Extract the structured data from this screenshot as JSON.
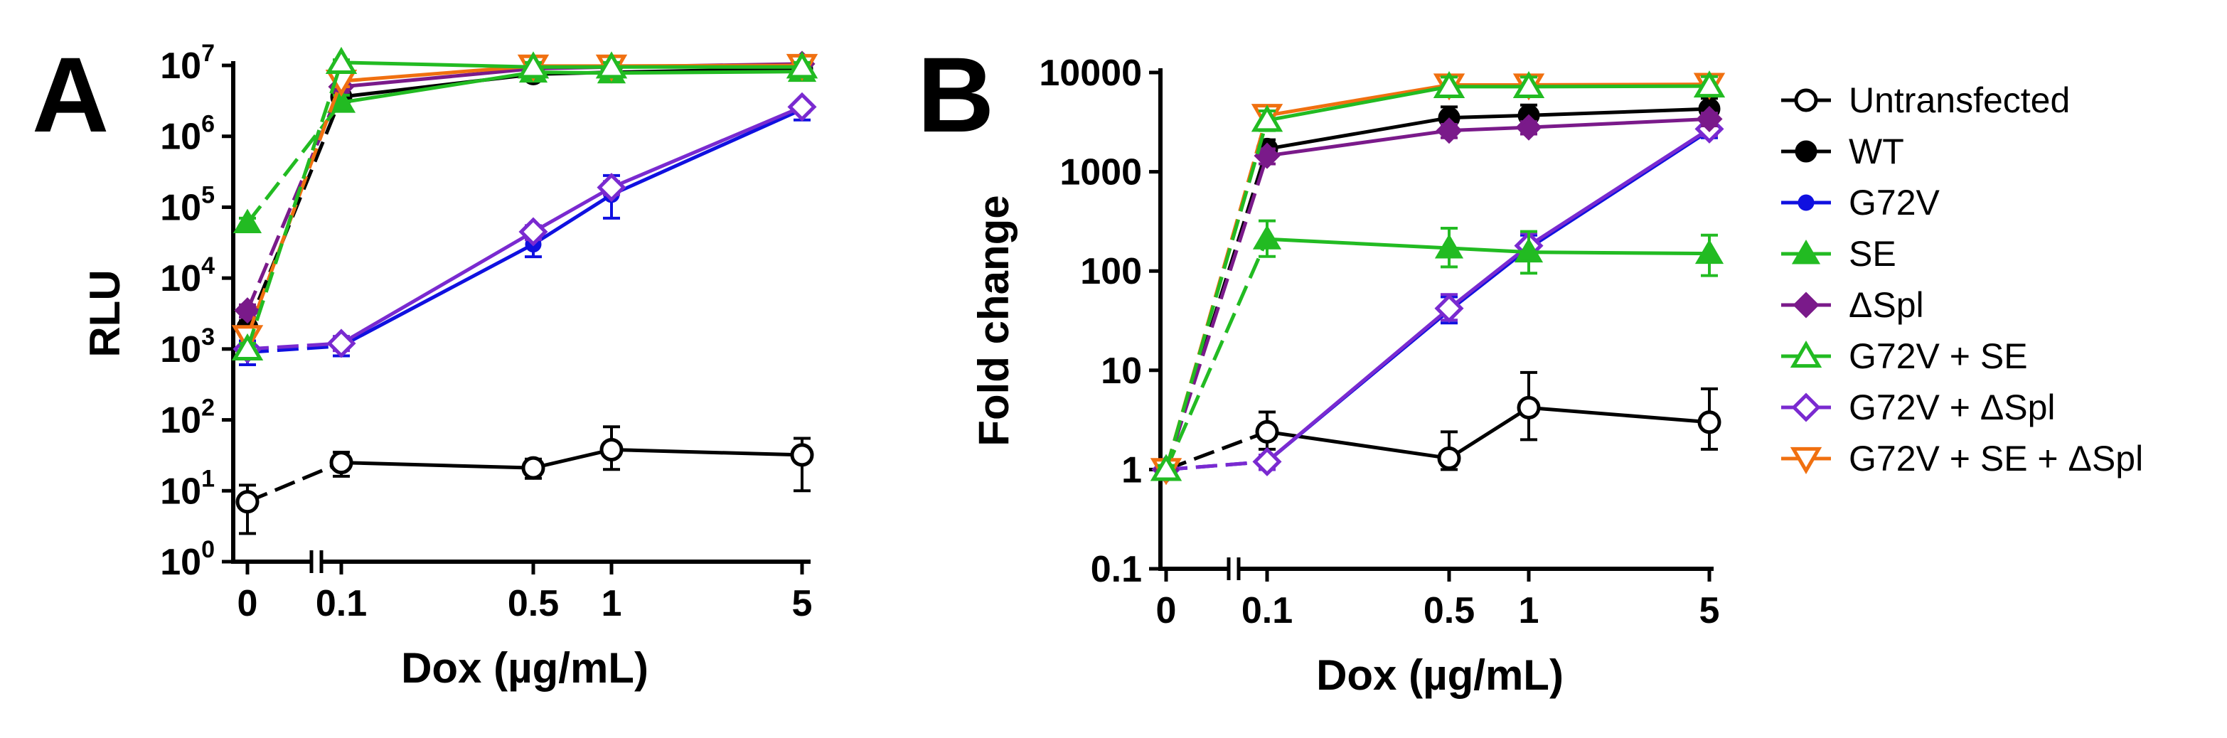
{
  "colors": {
    "untransfected": "#000000",
    "wt": "#000000",
    "g72v": "#1010e0",
    "se": "#22bb22",
    "dspl": "#7a1a8a",
    "g72v_se": "#22bb22",
    "g72v_dspl": "#7a2ad0",
    "g72v_se_dspl": "#f07010"
  },
  "legend": {
    "items": [
      {
        "key": "untransfected",
        "label": "Untransfected",
        "marker": "circle-open"
      },
      {
        "key": "wt",
        "label": "WT",
        "marker": "circle-filled"
      },
      {
        "key": "g72v",
        "label": "G72V",
        "marker": "circle-filled-small"
      },
      {
        "key": "se",
        "label": "SE",
        "marker": "triangle-up-filled"
      },
      {
        "key": "dspl",
        "label": "ΔSpl",
        "marker": "diamond-filled"
      },
      {
        "key": "g72v_se",
        "label": "G72V + SE",
        "marker": "triangle-up-open"
      },
      {
        "key": "g72v_dspl",
        "label": "G72V + ΔSpl",
        "marker": "diamond-open"
      },
      {
        "key": "g72v_se_dspl",
        "label": "G72V + SE + ΔSpl",
        "marker": "triangle-down-open"
      }
    ]
  },
  "chart_data": [
    {
      "type": "line",
      "panel_label": "A",
      "title": "",
      "xlabel": "Dox (µg/mL)",
      "ylabel": "RLU",
      "x": [
        0,
        0.1,
        0.5,
        1,
        5
      ],
      "x_tick_labels": [
        "0",
        "0.1",
        "0.5",
        "1",
        "5"
      ],
      "x_axis_break": "between 0 and 0.1",
      "yscale": "log",
      "ylim": [
        1,
        10000000
      ],
      "y_ticks": [
        {
          "base": "10",
          "exp": "0"
        },
        {
          "base": "10",
          "exp": "1"
        },
        {
          "base": "10",
          "exp": "2"
        },
        {
          "base": "10",
          "exp": "3"
        },
        {
          "base": "10",
          "exp": "4"
        },
        {
          "base": "10",
          "exp": "5"
        },
        {
          "base": "10",
          "exp": "6"
        },
        {
          "base": "10",
          "exp": "7"
        }
      ],
      "series": [
        {
          "key": "untransfected",
          "name": "Untransfected",
          "values": [
            7,
            25,
            21,
            38,
            32
          ],
          "err_hi": [
            12,
            35,
            28,
            80,
            55
          ],
          "err_lo": [
            2.5,
            16,
            15,
            20,
            10
          ]
        },
        {
          "key": "wt",
          "name": "WT",
          "values": [
            2000,
            3600000,
            7500000,
            8000000,
            9000000
          ],
          "err_hi": [
            2500,
            4500000,
            9000000,
            9500000,
            10500000
          ],
          "err_lo": [
            1500,
            3000000,
            6500000,
            7000000,
            8000000
          ]
        },
        {
          "key": "g72v",
          "name": "G72V",
          "values": [
            900,
            1100,
            30000,
            150000,
            2400000
          ],
          "err_hi": [
            1300,
            1500,
            45000,
            280000,
            3000000
          ],
          "err_lo": [
            600,
            800,
            20000,
            70000,
            1700000
          ]
        },
        {
          "key": "se",
          "name": "SE",
          "values": [
            60000,
            3000000,
            8000000,
            7800000,
            8200000
          ],
          "err_hi": [
            70000,
            3800000,
            9500000,
            9300000,
            9800000
          ],
          "err_lo": [
            50000,
            2500000,
            7000000,
            6800000,
            7200000
          ]
        },
        {
          "key": "dspl",
          "name": "ΔSpl",
          "values": [
            3500,
            5000000,
            9000000,
            9500000,
            10500000
          ],
          "err_hi": [
            4200,
            5800000,
            10200000,
            10800000,
            12000000
          ],
          "err_lo": [
            2800,
            4200000,
            8000000,
            8500000,
            9500000
          ]
        },
        {
          "key": "g72v_se",
          "name": "G72V + SE",
          "values": [
            1000,
            11000000,
            9500000,
            9500000,
            9500000
          ],
          "err_hi": [
            1200,
            12000000,
            11000000,
            11000000,
            11000000
          ],
          "err_lo": [
            850,
            9800000,
            8500000,
            8500000,
            8500000
          ]
        },
        {
          "key": "g72v_dspl",
          "name": "G72V + ΔSpl",
          "values": [
            1000,
            1200,
            45000,
            190000,
            2600000
          ],
          "err_hi": [
            1200,
            1500,
            55000,
            230000,
            3000000
          ],
          "err_lo": [
            850,
            950,
            35000,
            150000,
            2200000
          ]
        },
        {
          "key": "g72v_se_dspl",
          "name": "G72V + SE + ΔSpl",
          "values": [
            1500,
            6000000,
            9800000,
            9800000,
            10000000
          ],
          "err_hi": [
            1800,
            7000000,
            11000000,
            11000000,
            11500000
          ],
          "err_lo": [
            1200,
            5000000,
            8800000,
            8800000,
            9000000
          ]
        }
      ]
    },
    {
      "type": "line",
      "panel_label": "B",
      "title": "",
      "xlabel": "Dox (µg/mL)",
      "ylabel": "Fold change",
      "x": [
        0,
        0.1,
        0.5,
        1,
        5
      ],
      "x_tick_labels": [
        "0",
        "0.1",
        "0.5",
        "1",
        "5"
      ],
      "x_axis_break": "between 0 and 0.1",
      "yscale": "log",
      "ylim": [
        0.1,
        10000
      ],
      "y_ticks": [
        {
          "label": "0.1"
        },
        {
          "label": "1"
        },
        {
          "label": "10"
        },
        {
          "label": "100"
        },
        {
          "label": "1000"
        },
        {
          "label": "10000"
        }
      ],
      "series": [
        {
          "key": "untransfected",
          "name": "Untransfected",
          "values": [
            1,
            2.4,
            1.3,
            4.2,
            3.0
          ],
          "err_hi": [
            1.1,
            3.8,
            2.4,
            9.5,
            6.5
          ],
          "err_lo": [
            0.9,
            1.6,
            1.0,
            2.0,
            1.6
          ]
        },
        {
          "key": "wt",
          "name": "WT",
          "values": [
            1,
            1700,
            3500,
            3700,
            4300
          ],
          "err_hi": [
            1.1,
            2100,
            4500,
            4700,
            5500
          ],
          "err_lo": [
            0.9,
            1400,
            2800,
            3000,
            3500
          ]
        },
        {
          "key": "g72v",
          "name": "G72V",
          "values": [
            1,
            1.2,
            40,
            170,
            2600
          ],
          "err_hi": [
            1.1,
            1.4,
            55,
            230,
            3000
          ],
          "err_lo": [
            0.9,
            1.0,
            30,
            130,
            2200
          ]
        },
        {
          "key": "se",
          "name": "SE",
          "values": [
            1,
            210,
            170,
            155,
            150
          ],
          "err_hi": [
            1.1,
            320,
            270,
            250,
            230
          ],
          "err_lo": [
            0.9,
            140,
            110,
            95,
            90
          ]
        },
        {
          "key": "dspl",
          "name": "ΔSpl",
          "values": [
            1,
            1450,
            2600,
            2800,
            3400
          ],
          "err_hi": [
            1.1,
            1700,
            3000,
            3200,
            3900
          ],
          "err_lo": [
            0.9,
            1200,
            2200,
            2400,
            2900
          ]
        },
        {
          "key": "g72v_se",
          "name": "G72V + SE",
          "values": [
            1,
            3300,
            7200,
            7200,
            7300
          ],
          "err_hi": [
            1.1,
            4100,
            9000,
            9000,
            9100
          ],
          "err_lo": [
            0.9,
            2600,
            5800,
            5800,
            5900
          ]
        },
        {
          "key": "g72v_dspl",
          "name": "G72V + ΔSpl",
          "values": [
            1,
            1.2,
            42,
            180,
            2700
          ],
          "err_hi": [
            1.1,
            1.4,
            58,
            240,
            3100
          ],
          "err_lo": [
            0.9,
            1.0,
            32,
            140,
            2300
          ]
        },
        {
          "key": "g72v_se_dspl",
          "name": "G72V + SE + ΔSpl",
          "values": [
            1,
            3700,
            7500,
            7500,
            7600
          ],
          "err_hi": [
            1.1,
            4400,
            9200,
            9200,
            9300
          ],
          "err_lo": [
            0.9,
            3100,
            6100,
            6100,
            6200
          ]
        }
      ]
    }
  ]
}
